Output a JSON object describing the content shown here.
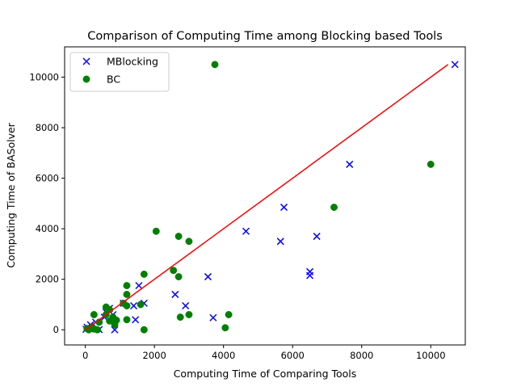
{
  "chart_data": {
    "type": "scatter",
    "title": "Comparison of Computing Time among Blocking based Tools",
    "xlabel": "Computing Time of Comparing Tools",
    "ylabel": "Computing Time of BASolver",
    "xlim": [
      -600,
      11000
    ],
    "ylim": [
      -600,
      11200
    ],
    "x_ticks": [
      0,
      2000,
      4000,
      6000,
      8000,
      10000
    ],
    "y_ticks": [
      0,
      2000,
      4000,
      6000,
      8000,
      10000
    ],
    "grid": false,
    "legend_position": "top-left",
    "series": [
      {
        "name": "MBlocking",
        "marker": "x",
        "color": "#0000ff",
        "points": [
          [
            10700,
            10500
          ],
          [
            7650,
            6550
          ],
          [
            5750,
            4850
          ],
          [
            4650,
            3900
          ],
          [
            6700,
            3700
          ],
          [
            5650,
            3500
          ],
          [
            6500,
            2300
          ],
          [
            6500,
            2150
          ],
          [
            3550,
            2100
          ],
          [
            1550,
            1750
          ],
          [
            2600,
            1400
          ],
          [
            1100,
            1050
          ],
          [
            1700,
            1050
          ],
          [
            1400,
            950
          ],
          [
            2900,
            950
          ],
          [
            700,
            850
          ],
          [
            600,
            700
          ],
          [
            800,
            600
          ],
          [
            3700,
            480
          ],
          [
            550,
            500
          ],
          [
            1450,
            400
          ],
          [
            300,
            300
          ],
          [
            150,
            200
          ],
          [
            50,
            100
          ],
          [
            100,
            50
          ],
          [
            20,
            20
          ],
          [
            850,
            0
          ],
          [
            400,
            10
          ]
        ]
      },
      {
        "name": "BC",
        "color": "#008000",
        "marker": "o",
        "points": [
          [
            3750,
            10500
          ],
          [
            10000,
            6550
          ],
          [
            7200,
            4850
          ],
          [
            2050,
            3900
          ],
          [
            2700,
            3700
          ],
          [
            3000,
            3500
          ],
          [
            2550,
            2350
          ],
          [
            1700,
            2200
          ],
          [
            2700,
            2100
          ],
          [
            1200,
            1750
          ],
          [
            1200,
            1400
          ],
          [
            1100,
            1050
          ],
          [
            1600,
            1000
          ],
          [
            1200,
            950
          ],
          [
            600,
            900
          ],
          [
            700,
            800
          ],
          [
            600,
            600
          ],
          [
            250,
            600
          ],
          [
            3000,
            600
          ],
          [
            4150,
            600
          ],
          [
            800,
            500
          ],
          [
            2750,
            500
          ],
          [
            900,
            380
          ],
          [
            1200,
            400
          ],
          [
            700,
            350
          ],
          [
            400,
            300
          ],
          [
            850,
            200
          ],
          [
            200,
            100
          ],
          [
            50,
            50
          ],
          [
            250,
            30
          ],
          [
            350,
            0
          ],
          [
            1700,
            0
          ],
          [
            4050,
            80
          ],
          [
            100,
            0
          ]
        ]
      },
      {
        "name": "",
        "type": "line",
        "color": "#ff0000",
        "points": [
          [
            0,
            0
          ],
          [
            10500,
            10500
          ]
        ]
      }
    ]
  }
}
